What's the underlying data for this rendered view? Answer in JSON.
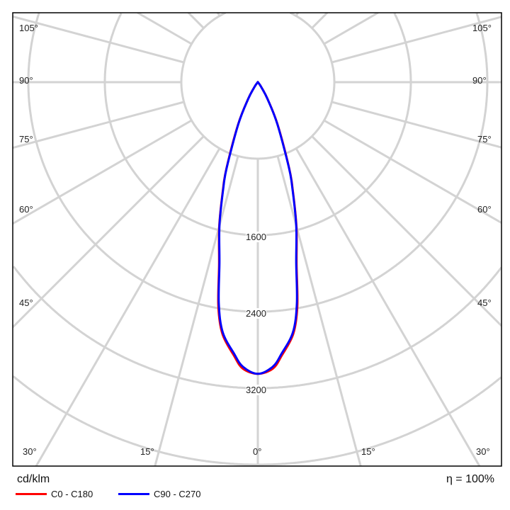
{
  "chart_data": {
    "type": "polar-line",
    "unit_label": "cd/klm",
    "efficiency_label": "η = 100%",
    "radial_ticks": [
      1600,
      2400,
      3200
    ],
    "radial_grid_step": 800,
    "angle_tick_labels": {
      "bottom": [
        "30°",
        "15°",
        "0°",
        "15°",
        "30°"
      ],
      "left": [
        "45°",
        "60°",
        "75°",
        "90°",
        "105°"
      ],
      "right": [
        "45°",
        "60°",
        "75°",
        "90°",
        "105°"
      ]
    },
    "grid": true,
    "legend_placement": "bottom-left",
    "angles_deg": [
      0,
      3,
      5,
      8,
      10,
      12,
      15,
      18,
      20,
      25,
      30,
      35,
      40,
      45,
      90
    ],
    "series": [
      {
        "name": "C0 - C180",
        "color": "#ff0000",
        "values": [
          3050,
          3000,
          2870,
          2660,
          2380,
          1950,
          1560,
          1180,
          960,
          490,
          205,
          65,
          15,
          0,
          0
        ]
      },
      {
        "name": "C90 - C270",
        "color": "#0000ff",
        "values": [
          3050,
          2980,
          2850,
          2640,
          2350,
          1930,
          1550,
          1170,
          950,
          480,
          200,
          60,
          15,
          0,
          0
        ]
      }
    ]
  }
}
